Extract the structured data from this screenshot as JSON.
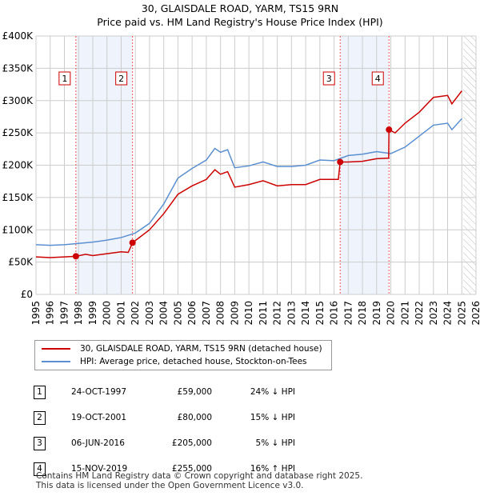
{
  "title": "30, GLAISDALE ROAD, YARM, TS15 9RN",
  "subtitle": "Price paid vs. HM Land Registry's House Price Index (HPI)",
  "colors": {
    "property": "#cc0000",
    "hpi": "#5b8fd0",
    "shade": "#eef3fc"
  },
  "chart_data": {
    "type": "line",
    "xlim": [
      1995,
      2026
    ],
    "ylim": [
      0,
      400000
    ],
    "y_ticks": [
      {
        "v": 0,
        "label": "£0"
      },
      {
        "v": 50000,
        "label": "£50K"
      },
      {
        "v": 100000,
        "label": "£100K"
      },
      {
        "v": 150000,
        "label": "£150K"
      },
      {
        "v": 200000,
        "label": "£200K"
      },
      {
        "v": 250000,
        "label": "£250K"
      },
      {
        "v": 300000,
        "label": "£300K"
      },
      {
        "v": 350000,
        "label": "£350K"
      },
      {
        "v": 400000,
        "label": "£400K"
      }
    ],
    "x_ticks": [
      "1995",
      "1996",
      "1997",
      "1998",
      "1999",
      "2000",
      "2001",
      "2002",
      "2003",
      "2004",
      "2005",
      "2006",
      "2007",
      "2008",
      "2009",
      "2010",
      "2011",
      "2012",
      "2013",
      "2014",
      "2015",
      "2016",
      "2017",
      "2018",
      "2019",
      "2020",
      "2021",
      "2022",
      "2023",
      "2024",
      "2025",
      "2026"
    ],
    "forecast_from": 2025.1,
    "shaded_ranges": [
      [
        1997.81,
        2001.8
      ],
      [
        2016.43,
        2019.87
      ]
    ],
    "series": [
      {
        "name": "30, GLAISDALE ROAD, YARM, TS15 9RN (detached house)",
        "x": [
          1995,
          1996,
          1997,
          1997.81,
          1998.5,
          1999,
          2000,
          2001,
          2001.5,
          2001.8,
          2003,
          2004,
          2005,
          2006,
          2007,
          2007.6,
          2008,
          2008.5,
          2009,
          2010,
          2011,
          2012,
          2013,
          2014,
          2015,
          2016.3,
          2016.43,
          2017,
          2018,
          2019,
          2019.85,
          2019.87,
          2020.3,
          2021,
          2022,
          2023,
          2024,
          2024.3,
          2025
        ],
        "values": [
          58000,
          57000,
          58000,
          59000,
          62000,
          60000,
          63000,
          66000,
          65000,
          80000,
          100000,
          125000,
          155000,
          168000,
          178000,
          193000,
          186000,
          190000,
          166000,
          170000,
          176000,
          168000,
          170000,
          170000,
          178000,
          178000,
          205000,
          205000,
          206000,
          210000,
          211000,
          255000,
          250000,
          265000,
          282000,
          305000,
          308000,
          295000,
          315000
        ]
      },
      {
        "name": "HPI: Average price, detached house, Stockton-on-Tees",
        "x": [
          1995,
          1996,
          1997,
          1998,
          1999,
          2000,
          2001,
          2002,
          2003,
          2004,
          2005,
          2006,
          2007,
          2007.6,
          2008,
          2008.5,
          2009,
          2010,
          2011,
          2012,
          2013,
          2014,
          2015,
          2016,
          2017,
          2018,
          2019,
          2020,
          2021,
          2022,
          2023,
          2024,
          2024.3,
          2025
        ],
        "values": [
          77000,
          76000,
          77000,
          79000,
          81000,
          84000,
          88000,
          95000,
          110000,
          140000,
          180000,
          195000,
          208000,
          226000,
          220000,
          224000,
          196000,
          199000,
          205000,
          198000,
          198000,
          200000,
          208000,
          207000,
          215000,
          217000,
          221000,
          218000,
          228000,
          245000,
          262000,
          265000,
          255000,
          272000
        ]
      }
    ],
    "markers": [
      {
        "label": "1",
        "x": 1997.81,
        "value": 59000
      },
      {
        "label": "2",
        "x": 2001.8,
        "value": 80000
      },
      {
        "label": "3",
        "x": 2016.43,
        "value": 205000
      },
      {
        "label": "4",
        "x": 2019.87,
        "value": 255000
      }
    ]
  },
  "legend": {
    "property": "30, GLAISDALE ROAD, YARM, TS15 9RN (detached house)",
    "hpi": "HPI: Average price, detached house, Stockton-on-Tees"
  },
  "transactions": [
    {
      "num": "1",
      "date": "24-OCT-1997",
      "price": "£59,000",
      "hpi": "24% ↓ HPI"
    },
    {
      "num": "2",
      "date": "19-OCT-2001",
      "price": "£80,000",
      "hpi": "15% ↓ HPI"
    },
    {
      "num": "3",
      "date": "06-JUN-2016",
      "price": "£205,000",
      "hpi": "5% ↓ HPI"
    },
    {
      "num": "4",
      "date": "15-NOV-2019",
      "price": "£255,000",
      "hpi": "16% ↑ HPI"
    }
  ],
  "footer": [
    "Contains HM Land Registry data © Crown copyright and database right 2025.",
    "This data is licensed under the Open Government Licence v3.0."
  ]
}
